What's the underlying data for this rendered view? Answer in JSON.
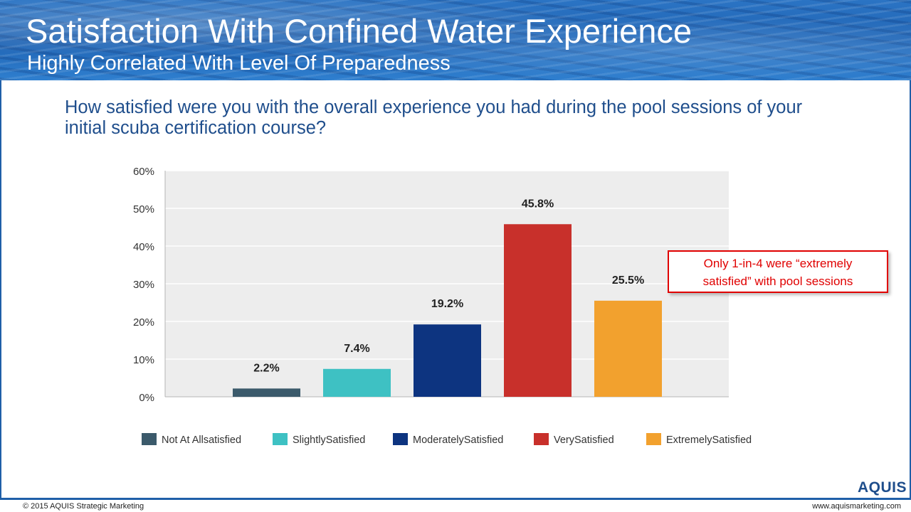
{
  "header": {
    "title": "Satisfaction With Confined Water Experience",
    "subtitle": "Highly Correlated With Level Of Preparedness"
  },
  "question": "How satisfied were you with the overall experience you had during the pool sessions of your initial scuba certification course?",
  "callout": {
    "line1": "Only 1-in-4 were “extremely",
    "line2": "satisfied” with pool sessions"
  },
  "logo": {
    "text": "AQUIS"
  },
  "footer": {
    "left": "© 2015 AQUIS Strategic Marketing",
    "right": "www.aquismarketing.com"
  },
  "chart_data": {
    "type": "bar",
    "title": "",
    "xlabel": "",
    "ylabel": "",
    "ylim": [
      0,
      60
    ],
    "yticks": [
      0,
      10,
      20,
      30,
      40,
      50,
      60
    ],
    "ytick_labels": [
      "0%",
      "10%",
      "20%",
      "30%",
      "40%",
      "50%",
      "60%"
    ],
    "grid": true,
    "legend_position": "bottom",
    "categories": [
      "Not At Allsatisfied",
      "SlightlySatisfied",
      "ModeratelySatisfied",
      "VerySatisfied",
      "ExtremelySatisfied"
    ],
    "values": [
      2.2,
      7.4,
      19.2,
      45.8,
      25.5
    ],
    "data_labels": [
      "2.2%",
      "7.4%",
      "19.2%",
      "45.8%",
      "25.5%"
    ],
    "colors": [
      "#3b5a6b",
      "#3ec1c3",
      "#0d3480",
      "#c8302b",
      "#f2a12e"
    ]
  }
}
